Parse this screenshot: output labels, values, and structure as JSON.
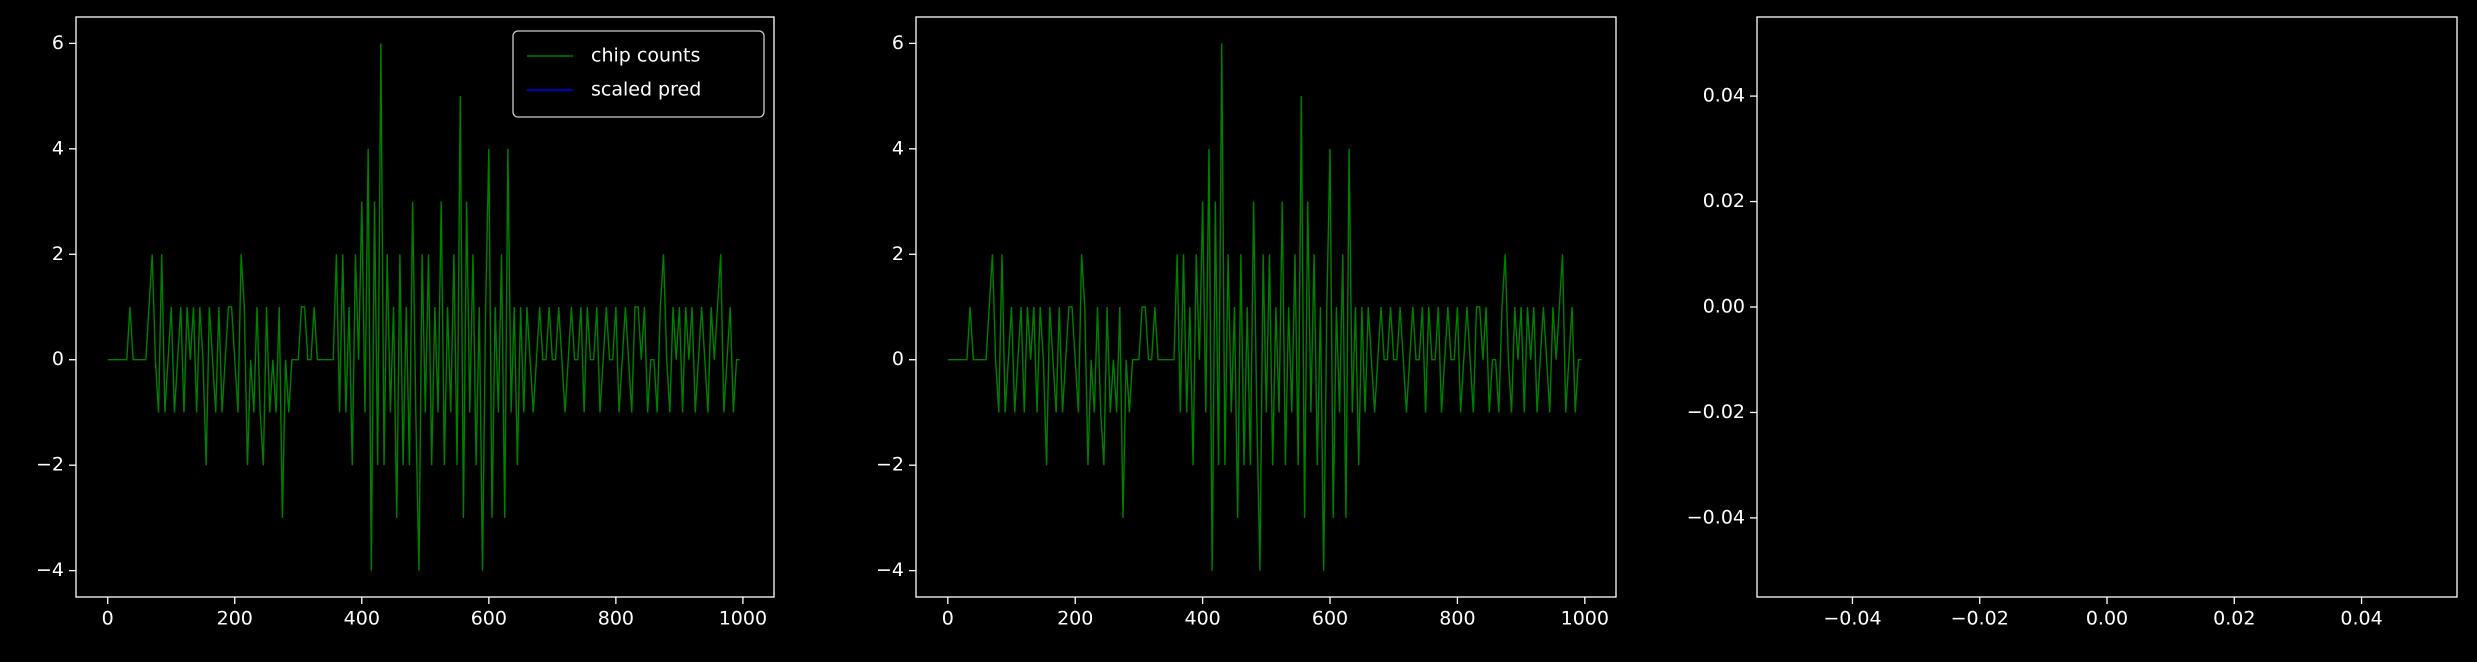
{
  "chart_data": [
    {
      "type": "line",
      "xlim": [
        -49.95,
        1048.95
      ],
      "ylim": [
        -4.5,
        6.5
      ],
      "xticks": [
        0,
        200,
        400,
        600,
        800,
        1000
      ],
      "yticks": [
        {
          "value": -4,
          "label": "−4"
        },
        {
          "value": -2,
          "label": "−2"
        },
        0,
        2,
        4,
        6
      ],
      "legend": "upper right",
      "series": [
        {
          "name": "chip counts",
          "color": "#008000",
          "x": [
            0,
            5,
            10,
            15,
            20,
            25,
            30,
            35,
            40,
            45,
            50,
            55,
            60,
            65,
            70,
            75,
            80,
            85,
            90,
            95,
            100,
            105,
            110,
            115,
            120,
            125,
            130,
            135,
            140,
            145,
            150,
            155,
            160,
            165,
            170,
            175,
            180,
            185,
            190,
            195,
            200,
            205,
            210,
            215,
            220,
            225,
            230,
            235,
            240,
            245,
            250,
            255,
            260,
            265,
            270,
            275,
            280,
            285,
            290,
            295,
            300,
            305,
            310,
            315,
            320,
            325,
            330,
            335,
            340,
            345,
            350,
            355,
            360,
            365,
            370,
            375,
            380,
            385,
            390,
            395,
            400,
            405,
            410,
            415,
            420,
            425,
            430,
            435,
            440,
            445,
            450,
            455,
            460,
            465,
            470,
            475,
            480,
            485,
            490,
            495,
            500,
            505,
            510,
            515,
            520,
            525,
            530,
            535,
            540,
            545,
            550,
            555,
            560,
            565,
            570,
            575,
            580,
            585,
            590,
            595,
            600,
            605,
            610,
            615,
            620,
            625,
            630,
            635,
            640,
            645,
            650,
            655,
            660,
            665,
            670,
            675,
            680,
            685,
            690,
            695,
            700,
            705,
            710,
            715,
            720,
            725,
            730,
            735,
            740,
            745,
            750,
            755,
            760,
            765,
            770,
            775,
            780,
            785,
            790,
            795,
            800,
            805,
            810,
            815,
            820,
            825,
            830,
            835,
            840,
            845,
            850,
            855,
            860,
            865,
            870,
            875,
            880,
            885,
            890,
            895,
            900,
            905,
            910,
            915,
            920,
            925,
            930,
            935,
            940,
            945,
            950,
            955,
            960,
            965,
            970,
            975,
            980,
            985,
            990,
            995
          ],
          "values": [
            0,
            0,
            0,
            0,
            0,
            0,
            0,
            1,
            0,
            0,
            0,
            0,
            0,
            1,
            2,
            0,
            -1,
            2,
            -1,
            0,
            1,
            -1,
            0,
            1,
            -1,
            1,
            0,
            1,
            -1,
            1,
            0,
            -2,
            1,
            0,
            -1,
            1,
            -1,
            0,
            1,
            1,
            0,
            -1,
            2,
            1,
            -2,
            0,
            -1,
            1,
            -1,
            -2,
            1,
            -1,
            0,
            -1,
            1,
            -3,
            0,
            -1,
            0,
            0,
            0,
            1,
            1,
            0,
            0,
            1,
            0,
            0,
            0,
            0,
            0,
            0,
            2,
            -1,
            2,
            -1,
            1,
            -2,
            2,
            0,
            3,
            -1,
            4,
            -4,
            3,
            -2,
            6,
            -2,
            2,
            -1,
            1,
            -3,
            2,
            -2,
            1,
            -2,
            3,
            -1,
            -4,
            2,
            -1,
            2,
            -2,
            1,
            -1,
            3,
            -2,
            1,
            -1,
            2,
            -2,
            5,
            -3,
            3,
            -1,
            2,
            -2,
            1,
            -4,
            1,
            4,
            -3,
            1,
            -1,
            2,
            -3,
            4,
            -1,
            1,
            -2,
            1,
            -1,
            1,
            0,
            -1,
            0,
            1,
            0,
            0,
            1,
            0,
            0,
            1,
            0,
            -1,
            0,
            1,
            0,
            0,
            1,
            -1,
            1,
            0,
            0,
            1,
            -1,
            0,
            1,
            0,
            0,
            1,
            -1,
            0,
            1,
            0,
            -1,
            1,
            1,
            0,
            1,
            -1,
            0,
            0,
            -1,
            1,
            2,
            0,
            -1,
            1,
            0,
            1,
            -1,
            1,
            0,
            1,
            -1,
            0,
            1,
            0,
            -1,
            1,
            0,
            1,
            2,
            -1,
            0,
            1,
            -1,
            0,
            0
          ]
        },
        {
          "name": "scaled pred",
          "color": "#0000ff",
          "x": [],
          "values": []
        }
      ]
    },
    {
      "type": "line",
      "xlim": [
        -49.95,
        1048.95
      ],
      "ylim": [
        -4.5,
        6.5
      ],
      "xticks": [
        0,
        200,
        400,
        600,
        800,
        1000
      ],
      "yticks": [
        {
          "value": -4,
          "label": "−4"
        },
        {
          "value": -2,
          "label": "−2"
        },
        0,
        2,
        4,
        6
      ],
      "series": [
        {
          "color": "#008000",
          "x": [
            0,
            5,
            10,
            15,
            20,
            25,
            30,
            35,
            40,
            45,
            50,
            55,
            60,
            65,
            70,
            75,
            80,
            85,
            90,
            95,
            100,
            105,
            110,
            115,
            120,
            125,
            130,
            135,
            140,
            145,
            150,
            155,
            160,
            165,
            170,
            175,
            180,
            185,
            190,
            195,
            200,
            205,
            210,
            215,
            220,
            225,
            230,
            235,
            240,
            245,
            250,
            255,
            260,
            265,
            270,
            275,
            280,
            285,
            290,
            295,
            300,
            305,
            310,
            315,
            320,
            325,
            330,
            335,
            340,
            345,
            350,
            355,
            360,
            365,
            370,
            375,
            380,
            385,
            390,
            395,
            400,
            405,
            410,
            415,
            420,
            425,
            430,
            435,
            440,
            445,
            450,
            455,
            460,
            465,
            470,
            475,
            480,
            485,
            490,
            495,
            500,
            505,
            510,
            515,
            520,
            525,
            530,
            535,
            540,
            545,
            550,
            555,
            560,
            565,
            570,
            575,
            580,
            585,
            590,
            595,
            600,
            605,
            610,
            615,
            620,
            625,
            630,
            635,
            640,
            645,
            650,
            655,
            660,
            665,
            670,
            675,
            680,
            685,
            690,
            695,
            700,
            705,
            710,
            715,
            720,
            725,
            730,
            735,
            740,
            745,
            750,
            755,
            760,
            765,
            770,
            775,
            780,
            785,
            790,
            795,
            800,
            805,
            810,
            815,
            820,
            825,
            830,
            835,
            840,
            845,
            850,
            855,
            860,
            865,
            870,
            875,
            880,
            885,
            890,
            895,
            900,
            905,
            910,
            915,
            920,
            925,
            930,
            935,
            940,
            945,
            950,
            955,
            960,
            965,
            970,
            975,
            980,
            985,
            990,
            995
          ],
          "values": [
            0,
            0,
            0,
            0,
            0,
            0,
            0,
            1,
            0,
            0,
            0,
            0,
            0,
            1,
            2,
            0,
            -1,
            2,
            -1,
            0,
            1,
            -1,
            0,
            1,
            -1,
            1,
            0,
            1,
            -1,
            1,
            0,
            -2,
            1,
            0,
            -1,
            1,
            -1,
            0,
            1,
            1,
            0,
            -1,
            2,
            1,
            -2,
            0,
            -1,
            1,
            -1,
            -2,
            1,
            -1,
            0,
            -1,
            1,
            -3,
            0,
            -1,
            0,
            0,
            0,
            1,
            1,
            0,
            0,
            1,
            0,
            0,
            0,
            0,
            0,
            0,
            2,
            -1,
            2,
            -1,
            1,
            -2,
            2,
            0,
            3,
            -1,
            4,
            -4,
            3,
            -2,
            6,
            -2,
            2,
            -1,
            1,
            -3,
            2,
            -2,
            1,
            -2,
            3,
            -1,
            -4,
            2,
            -1,
            2,
            -2,
            1,
            -1,
            3,
            -2,
            1,
            -1,
            2,
            -2,
            5,
            -3,
            3,
            -1,
            2,
            -2,
            1,
            -4,
            1,
            4,
            -3,
            1,
            -1,
            2,
            -3,
            4,
            -1,
            1,
            -2,
            1,
            -1,
            1,
            0,
            -1,
            0,
            1,
            0,
            0,
            1,
            0,
            0,
            1,
            0,
            -1,
            0,
            1,
            0,
            0,
            1,
            -1,
            1,
            0,
            0,
            1,
            -1,
            0,
            1,
            0,
            0,
            1,
            -1,
            0,
            1,
            0,
            -1,
            1,
            1,
            0,
            1,
            -1,
            0,
            0,
            -1,
            1,
            2,
            0,
            -1,
            1,
            0,
            1,
            -1,
            1,
            0,
            1,
            -1,
            0,
            1,
            0,
            -1,
            1,
            0,
            1,
            2,
            -1,
            0,
            1,
            -1,
            0,
            0
          ]
        }
      ]
    },
    {
      "type": "line",
      "xlim": [
        -0.055,
        0.055
      ],
      "ylim": [
        -0.055,
        0.055
      ],
      "xticks": [
        {
          "value": -0.04,
          "label": "−0.04"
        },
        {
          "value": -0.02,
          "label": "−0.02"
        },
        {
          "value": 0,
          "label": "0.00"
        },
        {
          "value": 0.02,
          "label": "0.02"
        },
        {
          "value": 0.04,
          "label": "0.04"
        }
      ],
      "yticks": [
        {
          "value": -0.04,
          "label": "−0.04"
        },
        {
          "value": -0.02,
          "label": "−0.02"
        },
        {
          "value": 0,
          "label": "0.00"
        },
        {
          "value": 0.02,
          "label": "0.02"
        },
        {
          "value": 0.04,
          "label": "0.04"
        }
      ],
      "series": []
    }
  ]
}
